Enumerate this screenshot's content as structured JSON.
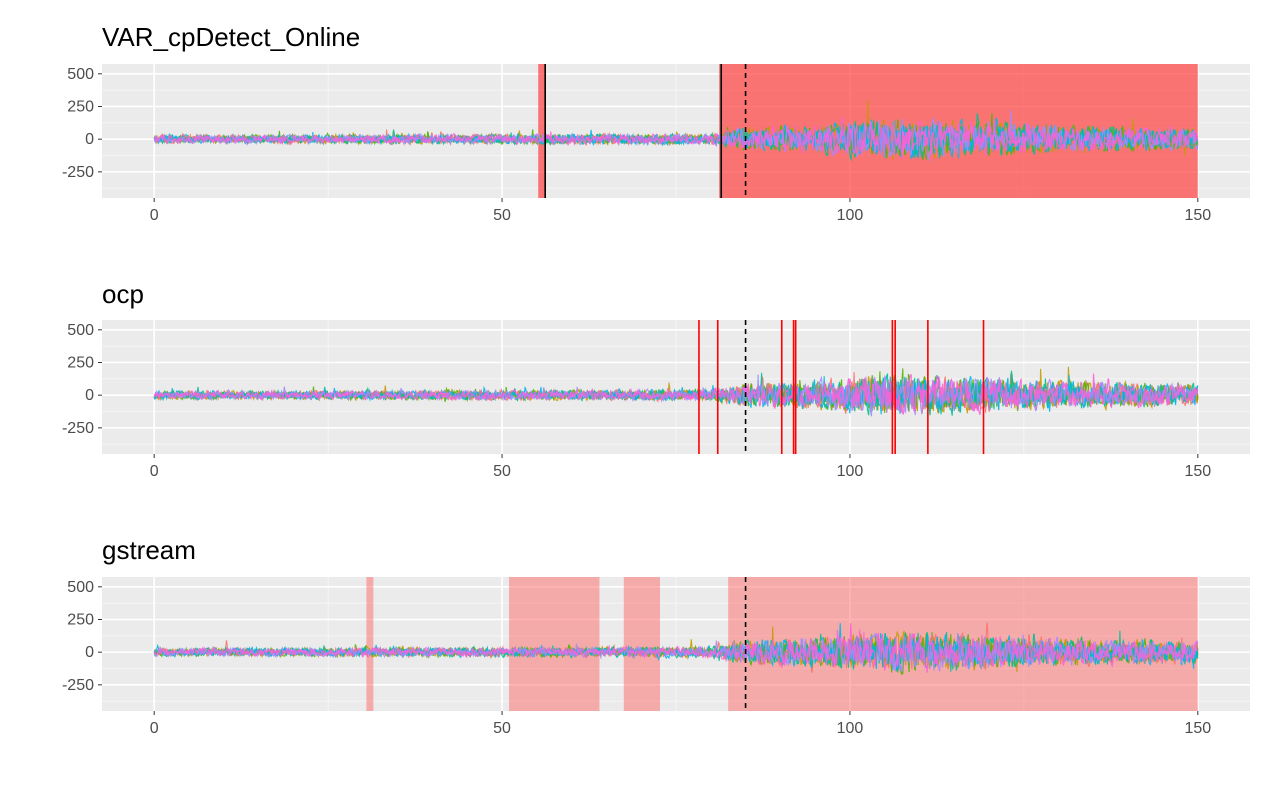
{
  "chart_data": [
    {
      "type": "line",
      "title": "VAR_cpDetect_Online",
      "xlim": [
        -7.5,
        157.5
      ],
      "ylim": [
        -450,
        575
      ],
      "x_ticks": [
        0,
        50,
        100,
        150
      ],
      "y_ticks": [
        -250,
        0,
        250,
        500
      ],
      "series_colors": [
        "#F8766D",
        "#C49A00",
        "#53B400",
        "#00C094",
        "#00B6EB",
        "#A58AFF",
        "#FB61D7"
      ],
      "true_changepoint": 85,
      "detected_changepoints": [
        56.2,
        81.5
      ],
      "detection_regions": [
        [
          55.2,
          56.3
        ],
        [
          81.2,
          150
        ]
      ],
      "region_color": "#ff4040",
      "region_opacity": 0.7,
      "amplitude_profile": [
        [
          0,
          45
        ],
        [
          80,
          60
        ],
        [
          85,
          130
        ],
        [
          95,
          160
        ],
        [
          105,
          230
        ],
        [
          118,
          200
        ],
        [
          130,
          150
        ],
        [
          150,
          120
        ]
      ]
    },
    {
      "type": "line",
      "title": "ocp",
      "xlim": [
        -7.5,
        157.5
      ],
      "ylim": [
        -450,
        575
      ],
      "x_ticks": [
        0,
        50,
        100,
        150
      ],
      "y_ticks": [
        -250,
        0,
        250,
        500
      ],
      "series_colors": [
        "#F8766D",
        "#C49A00",
        "#53B400",
        "#00C094",
        "#00B6EB",
        "#A58AFF",
        "#FB61D7"
      ],
      "true_changepoint": 85,
      "detected_changepoints": [
        78.3,
        81.0,
        90.2,
        91.9,
        92.2,
        106.1,
        106.5,
        111.2,
        119.2
      ],
      "detection_regions": [],
      "region_color": "#ff0000",
      "region_opacity": 0,
      "amplitude_profile": [
        [
          0,
          45
        ],
        [
          80,
          60
        ],
        [
          85,
          130
        ],
        [
          95,
          160
        ],
        [
          105,
          230
        ],
        [
          118,
          200
        ],
        [
          130,
          150
        ],
        [
          150,
          120
        ]
      ]
    },
    {
      "type": "line",
      "title": "gstream",
      "xlim": [
        -7.5,
        157.5
      ],
      "ylim": [
        -450,
        575
      ],
      "x_ticks": [
        0,
        50,
        100,
        150
      ],
      "y_ticks": [
        -250,
        0,
        250,
        500
      ],
      "series_colors": [
        "#F8766D",
        "#C49A00",
        "#53B400",
        "#00C094",
        "#00B6EB",
        "#A58AFF",
        "#FB61D7"
      ],
      "true_changepoint": 85,
      "detected_changepoints": [],
      "detection_regions": [
        [
          30.5,
          31.5
        ],
        [
          51.0,
          64.0
        ],
        [
          67.5,
          72.7
        ],
        [
          82.5,
          150
        ]
      ],
      "region_color": "#ff6a6a",
      "region_opacity": 0.5,
      "amplitude_profile": [
        [
          0,
          45
        ],
        [
          80,
          60
        ],
        [
          85,
          130
        ],
        [
          95,
          160
        ],
        [
          105,
          230
        ],
        [
          118,
          200
        ],
        [
          130,
          150
        ],
        [
          150,
          120
        ]
      ]
    }
  ]
}
